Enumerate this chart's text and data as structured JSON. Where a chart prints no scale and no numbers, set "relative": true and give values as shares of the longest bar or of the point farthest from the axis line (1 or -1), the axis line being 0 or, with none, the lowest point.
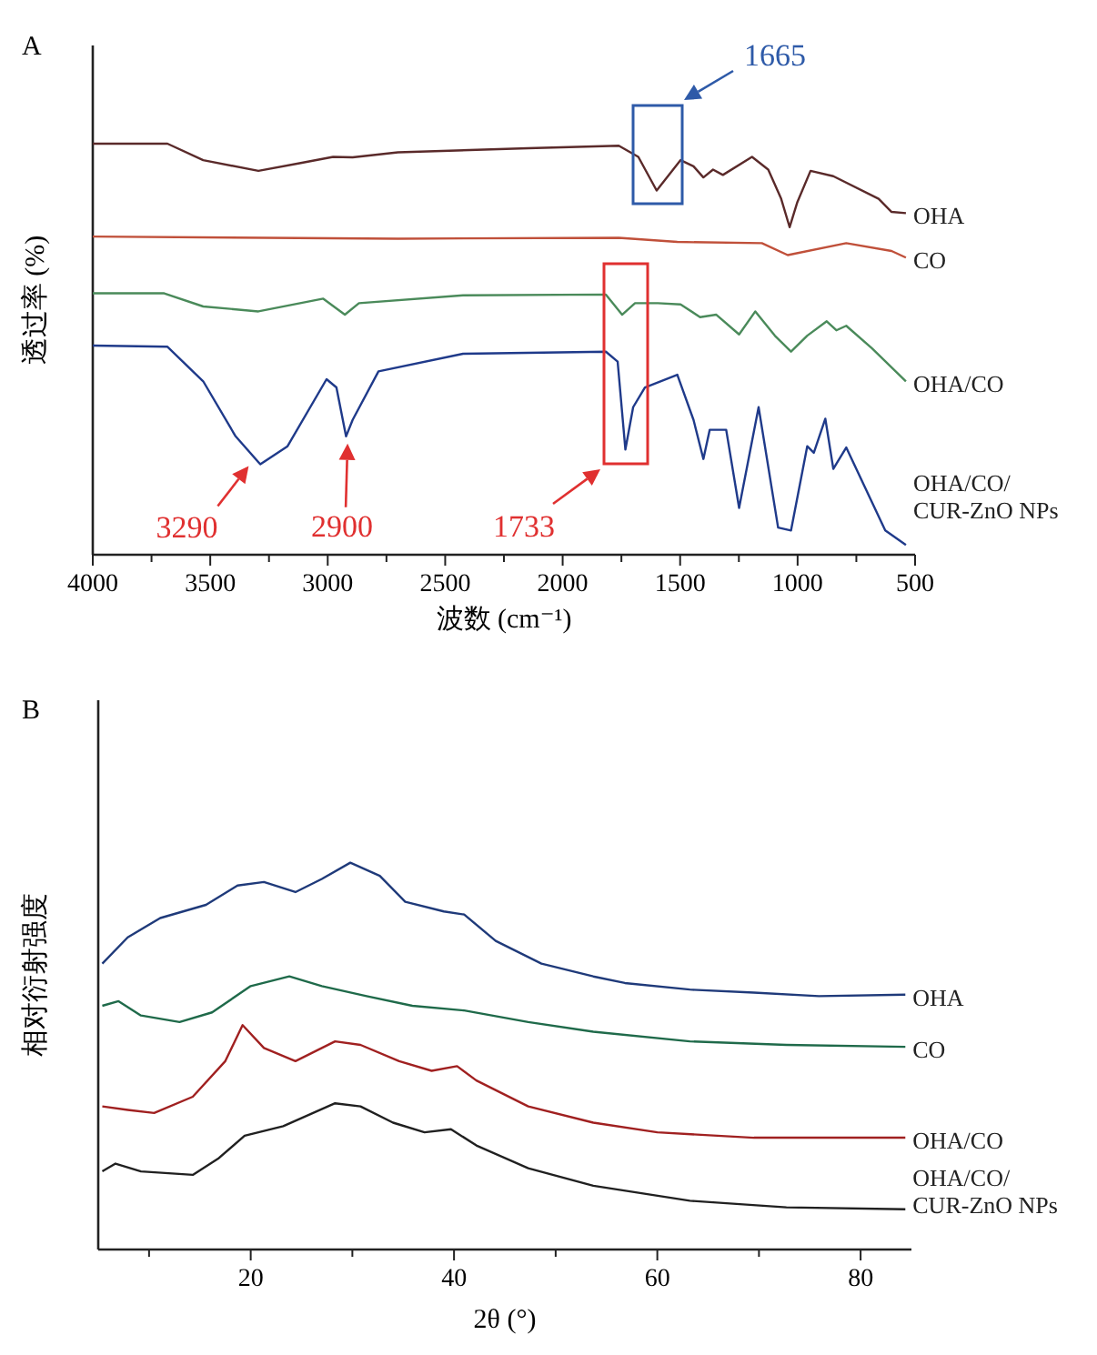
{
  "chart_data": [
    {
      "type": "line",
      "title": "A",
      "xlabel": "波数 (cm⁻¹)",
      "ylabel": "透过率 (%)",
      "relative": true,
      "xlim": [
        4000,
        500
      ],
      "xticks": [
        4000,
        {
          "value": 3750,
          "label": null
        },
        3500,
        {
          "value": 3250,
          "label": null
        },
        3000,
        {
          "value": 2750,
          "label": null
        },
        2500,
        {
          "value": 2250,
          "label": null
        },
        2000,
        {
          "value": 1750,
          "label": null
        },
        1500,
        {
          "value": 1250,
          "label": null
        },
        1000,
        {
          "value": 750,
          "label": null
        },
        500
      ],
      "series": [
        {
          "name": "OHA",
          "color": "#5a2a2a",
          "x": [
            4000,
            3682,
            3530,
            3295,
            3115,
            2977,
            2894,
            2701,
            2148,
            1761,
            1678,
            1600,
            1498,
            1443,
            1401,
            1360,
            1318,
            1194,
            1125,
            1070,
            1034,
            1001,
            945,
            848,
            655,
            600,
            539
          ],
          "values": [
            1.0,
            1.0,
            0.96,
            0.934,
            0.953,
            0.968,
            0.967,
            0.979,
            0.989,
            0.995,
            0.968,
            0.886,
            0.96,
            0.945,
            0.918,
            0.937,
            0.924,
            0.968,
            0.937,
            0.866,
            0.797,
            0.858,
            0.934,
            0.921,
            0.866,
            0.834,
            0.831
          ]
        },
        {
          "name": "CO",
          "color": "#c0503a",
          "x": [
            4000,
            2701,
            1761,
            1512,
            1152,
            1042,
            793,
            600,
            539
          ],
          "values": [
            0.774,
            0.769,
            0.771,
            0.761,
            0.758,
            0.729,
            0.758,
            0.739,
            0.723
          ]
        },
        {
          "name": "OHA/CO",
          "color": "#4a8a5a",
          "x": [
            4000,
            3696,
            3530,
            3295,
            3019,
            2927,
            2867,
            2424,
            1816,
            1747,
            1692,
            1595,
            1498,
            1415,
            1346,
            1249,
            1180,
            1097,
            1028,
            959,
            876,
            835,
            793,
            683,
            539
          ],
          "values": [
            0.636,
            0.636,
            0.604,
            0.592,
            0.623,
            0.584,
            0.612,
            0.631,
            0.633,
            0.584,
            0.612,
            0.612,
            0.609,
            0.578,
            0.584,
            0.536,
            0.592,
            0.533,
            0.494,
            0.533,
            0.568,
            0.546,
            0.557,
            0.502,
            0.422
          ]
        },
        {
          "name": "OHA/CO/CUR-ZnO NPs",
          "color": "#1f3a8a",
          "x": [
            4000,
            3682,
            3530,
            3392,
            3287,
            3171,
            3005,
            2963,
            2922,
            2894,
            2784,
            2424,
            1816,
            1766,
            1733,
            1700,
            1650,
            1512,
            1443,
            1401,
            1374,
            1304,
            1249,
            1166,
            1083,
            1028,
            959,
            931,
            882,
            848,
            793,
            627,
            539
          ],
          "values": [
            0.509,
            0.506,
            0.422,
            0.288,
            0.22,
            0.264,
            0.427,
            0.407,
            0.288,
            0.328,
            0.446,
            0.489,
            0.494,
            0.47,
            0.256,
            0.359,
            0.407,
            0.438,
            0.328,
            0.233,
            0.304,
            0.304,
            0.114,
            0.359,
            0.066,
            0.059,
            0.264,
            0.248,
            0.331,
            0.209,
            0.261,
            0.059,
            0.024
          ]
        }
      ],
      "annotations": [
        "1665",
        {
          "text": "3290",
          "x": 3290,
          "y": 0.22
        },
        {
          "text": "2900",
          "x": 2900,
          "y": 0.288
        },
        "1733"
      ]
    },
    {
      "type": "line",
      "title": "B",
      "xlabel": "2θ (°)",
      "ylabel": "相对衍射强度",
      "relative": true,
      "xlim": [
        5,
        85
      ],
      "xticks": [
        {
          "value": 10,
          "label": null
        },
        20,
        {
          "value": 30,
          "label": null
        },
        40,
        {
          "value": 50,
          "label": null
        },
        60,
        {
          "value": 70,
          "label": null
        },
        80
      ],
      "series": [
        {
          "name": "OHA",
          "color": "#1f3a7a",
          "x": [
            5.4,
            7.9,
            11.1,
            15.6,
            18.7,
            21.3,
            24.4,
            27,
            29.8,
            32.7,
            35.2,
            39,
            41,
            44.1,
            48.6,
            53.7,
            56.8,
            63.2,
            69.5,
            75.9,
            84.4
          ],
          "values": [
            0.739,
            0.807,
            0.857,
            0.891,
            0.941,
            0.95,
            0.924,
            0.958,
            1.0,
            0.966,
            0.899,
            0.874,
            0.866,
            0.798,
            0.739,
            0.706,
            0.689,
            0.672,
            0.664,
            0.655,
            0.659
          ]
        },
        {
          "name": "CO",
          "color": "#1f6a4a",
          "x": [
            5.4,
            7,
            9.2,
            13,
            16.2,
            20,
            23.8,
            27,
            31.4,
            35.9,
            41,
            47.3,
            53.7,
            63.2,
            72.7,
            84.4
          ],
          "values": [
            0.63,
            0.642,
            0.605,
            0.588,
            0.613,
            0.681,
            0.706,
            0.681,
            0.655,
            0.63,
            0.618,
            0.588,
            0.563,
            0.538,
            0.529,
            0.524
          ]
        },
        {
          "name": "OHA/CO",
          "color": "#a02020",
          "x": [
            5.4,
            7.9,
            10.5,
            14.3,
            17.5,
            19.2,
            21.3,
            24.4,
            28.3,
            30.8,
            34.6,
            37.8,
            40.3,
            42.2,
            47.3,
            53.7,
            60,
            69.5,
            84.4
          ],
          "values": [
            0.37,
            0.361,
            0.353,
            0.395,
            0.487,
            0.58,
            0.521,
            0.487,
            0.538,
            0.529,
            0.487,
            0.462,
            0.474,
            0.437,
            0.37,
            0.328,
            0.303,
            0.289,
            0.289
          ]
        },
        {
          "name": "OHA/CO/CUR-ZnO NPs",
          "color": "#202020",
          "x": [
            5.4,
            6.7,
            9.2,
            14.3,
            16.8,
            19.4,
            23.2,
            28.3,
            30.8,
            34,
            37.1,
            39.7,
            42.2,
            47.3,
            53.7,
            63.2,
            72.7,
            84.4
          ],
          "values": [
            0.202,
            0.222,
            0.202,
            0.193,
            0.235,
            0.294,
            0.319,
            0.378,
            0.37,
            0.328,
            0.303,
            0.311,
            0.269,
            0.21,
            0.165,
            0.126,
            0.109,
            0.104
          ]
        }
      ]
    }
  ]
}
